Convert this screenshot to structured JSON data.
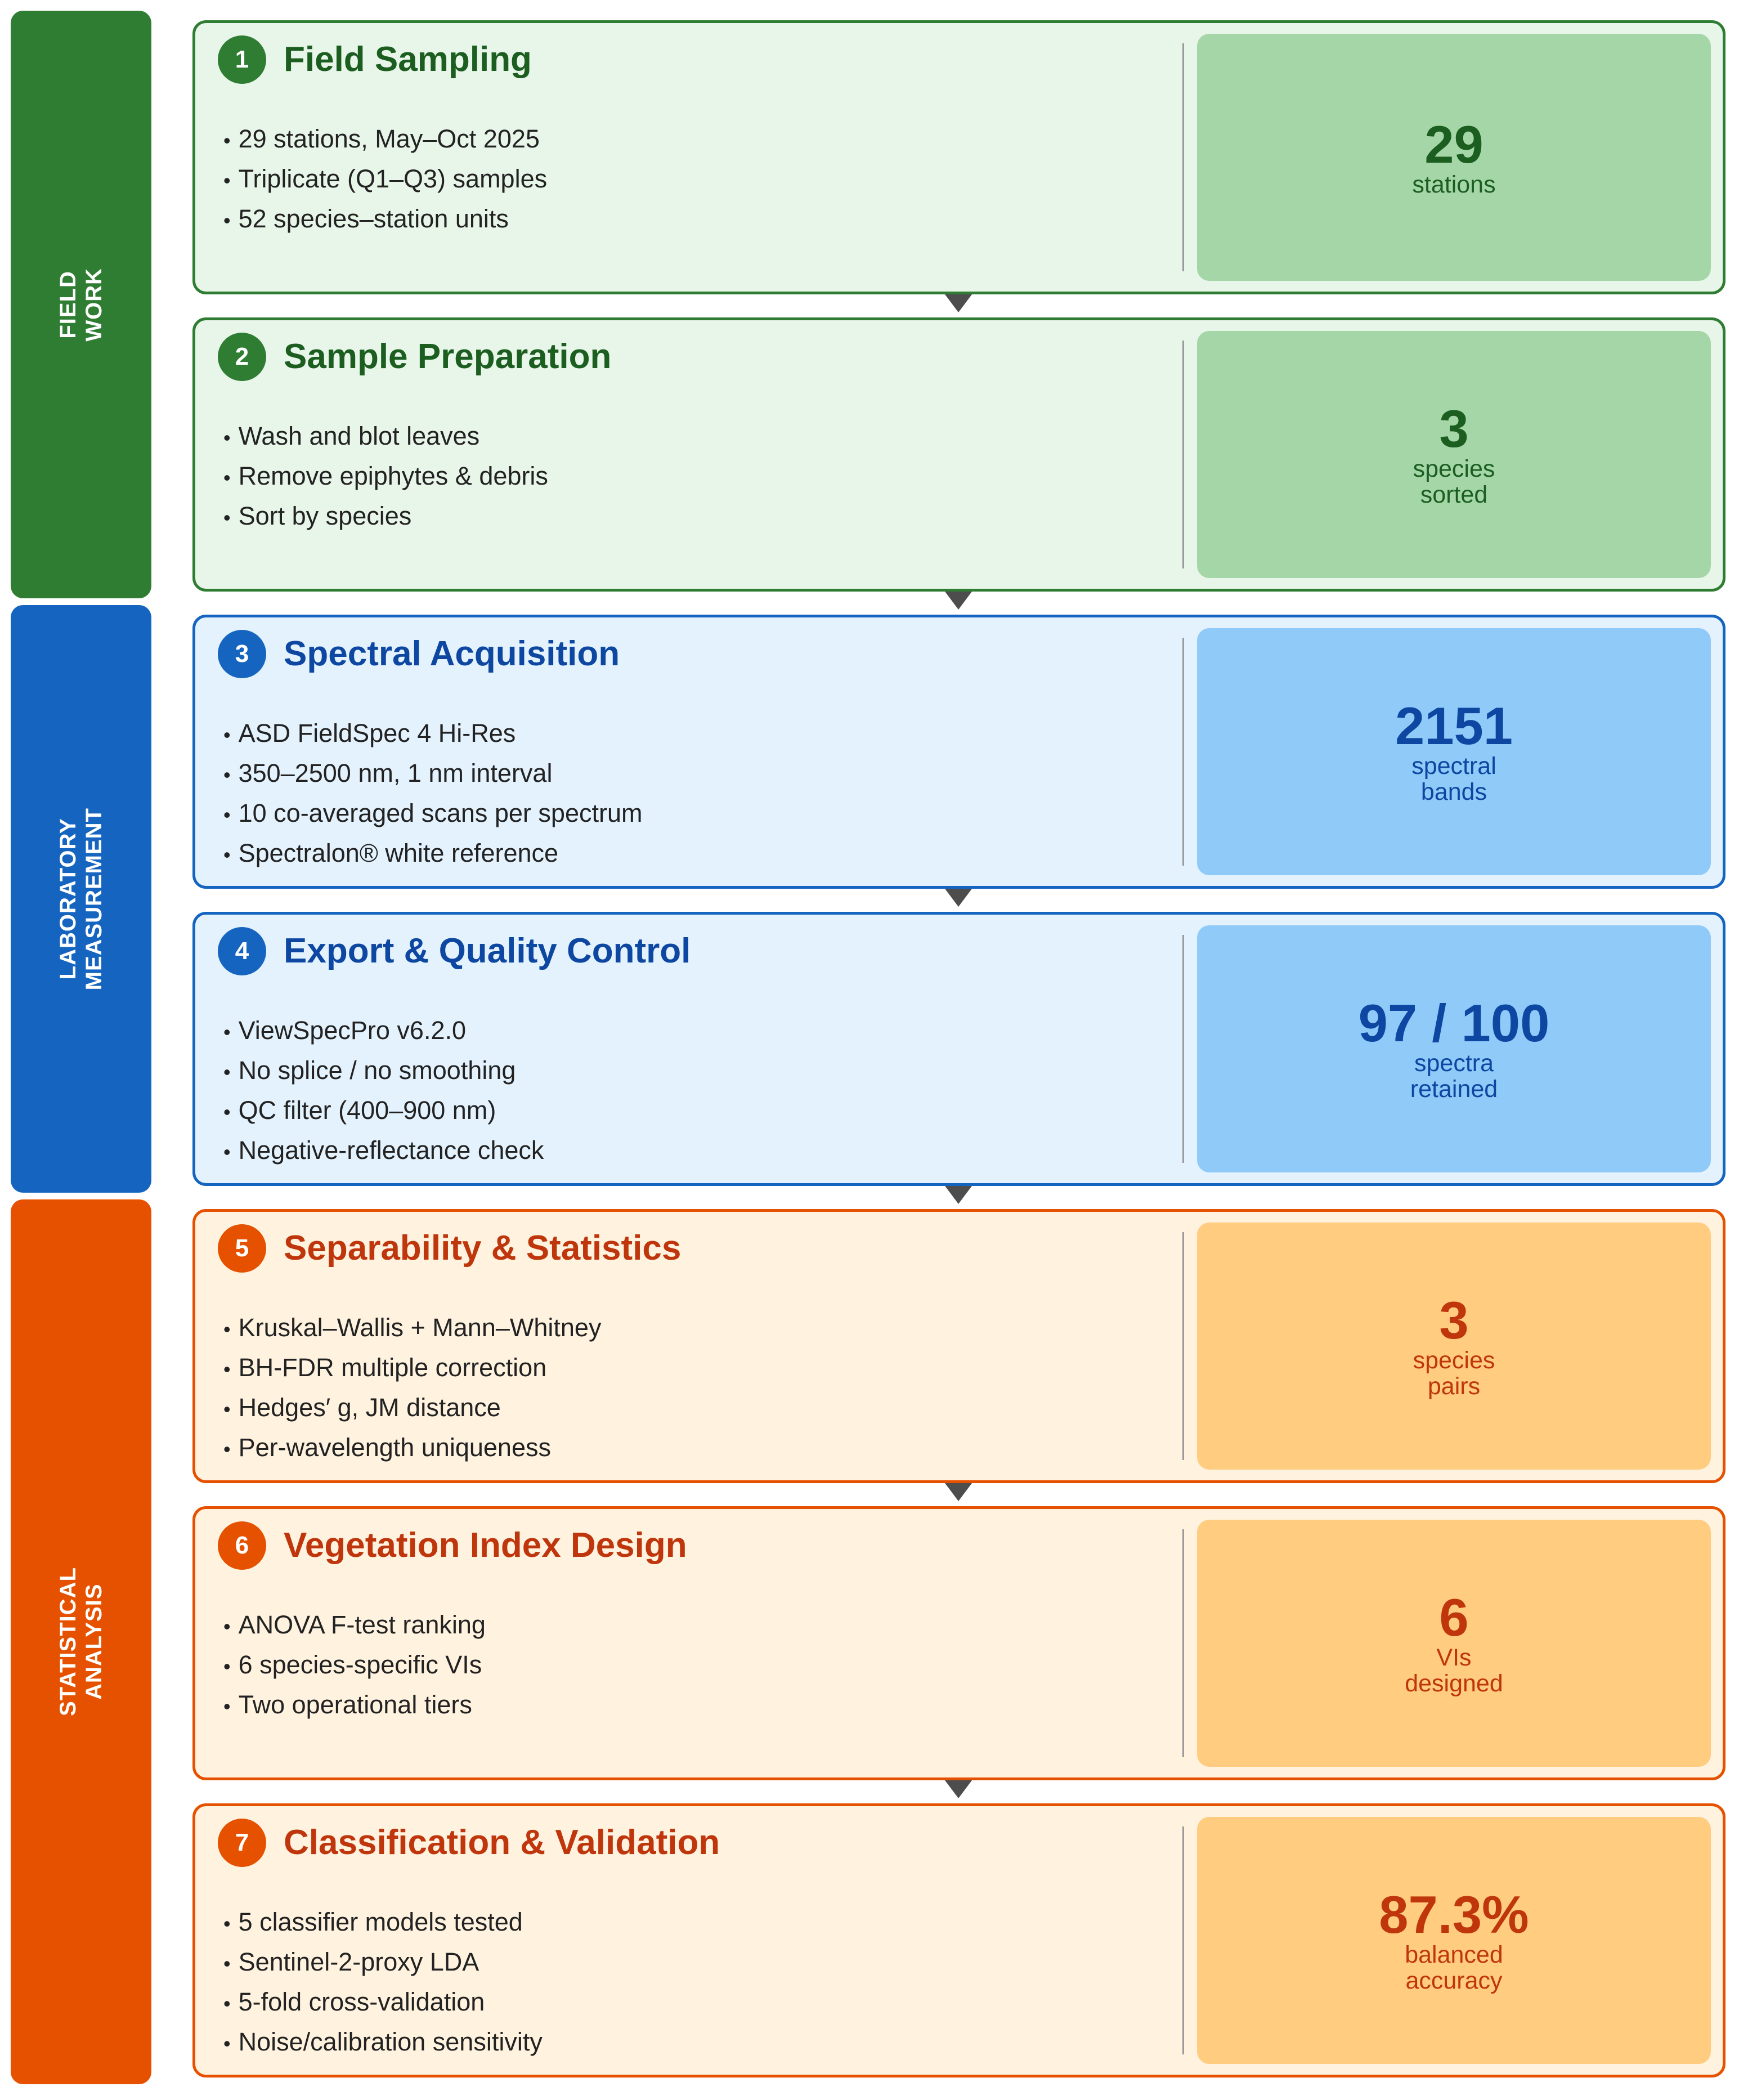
{
  "phases": [
    {
      "label_lines": [
        "FIELD",
        "WORK"
      ],
      "steps": [
        {
          "number": 1,
          "title": "Field Sampling",
          "bullets": [
            "29 stations, May–Oct 2025",
            "Triplicate (Q1–Q3) samples",
            "52 species–station units"
          ],
          "stat": {
            "value": "29",
            "label_lines": [
              "stations"
            ]
          }
        },
        {
          "number": 2,
          "title": "Sample Preparation",
          "bullets": [
            "Wash and blot leaves",
            "Remove epiphytes & debris",
            "Sort by species"
          ],
          "stat": {
            "value": "3",
            "label_lines": [
              "species",
              "sorted"
            ]
          }
        }
      ]
    },
    {
      "label_lines": [
        "LABORATORY",
        "MEASUREMENT"
      ],
      "steps": [
        {
          "number": 3,
          "title": "Spectral Acquisition",
          "bullets": [
            "ASD FieldSpec 4 Hi-Res",
            "350–2500 nm, 1 nm interval",
            "10 co-averaged scans per spectrum",
            "Spectralon® white reference"
          ],
          "stat": {
            "value": "2151",
            "label_lines": [
              "spectral",
              "bands"
            ]
          }
        },
        {
          "number": 4,
          "title": "Export & Quality Control",
          "bullets": [
            "ViewSpecPro v6.2.0",
            "No splice / no smoothing",
            "QC filter (400–900 nm)",
            "Negative-reflectance check"
          ],
          "stat": {
            "value": "97 / 100",
            "label_lines": [
              "spectra",
              "retained"
            ]
          }
        }
      ]
    },
    {
      "label_lines": [
        "STATISTICAL",
        "ANALYSIS"
      ],
      "steps": [
        {
          "number": 5,
          "title": "Separability & Statistics",
          "bullets": [
            "Kruskal–Wallis + Mann–Whitney",
            "BH-FDR multiple correction",
            "Hedges′ g, JM distance",
            "Per-wavelength uniqueness"
          ],
          "stat": {
            "value": "3",
            "label_lines": [
              "species",
              "pairs"
            ]
          }
        },
        {
          "number": 6,
          "title": "Vegetation Index Design",
          "bullets": [
            "ANOVA F-test ranking",
            "6 species-specific VIs",
            "Two operational tiers"
          ],
          "stat": {
            "value": "6",
            "label_lines": [
              "VIs",
              "designed"
            ]
          }
        },
        {
          "number": 7,
          "title": "Classification & Validation",
          "bullets": [
            "5 classifier models tested",
            "Sentinel-2-proxy LDA",
            "5-fold cross-validation",
            "Noise/calibration sensitivity"
          ],
          "stat": {
            "value": "87.3%",
            "label_lines": [
              "balanced",
              "accuracy"
            ]
          }
        }
      ]
    }
  ]
}
